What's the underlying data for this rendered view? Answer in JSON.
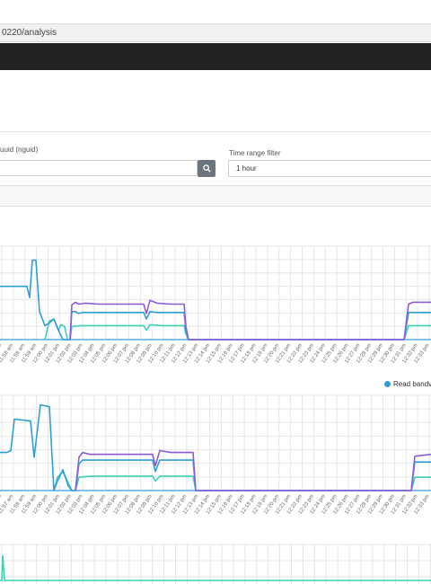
{
  "browser": {
    "url_fragment": "0220/analysis"
  },
  "filters": {
    "uuid_label": "uuid (nguid)",
    "time_range_label": "Time range filter",
    "time_range_value": "1 hour"
  },
  "legend": {
    "read_label": "Read bandv"
  },
  "colors": {
    "purple": "#8e5bd8",
    "blue": "#2e9fd6",
    "teal": "#3fd0b8",
    "grid": "#e6e6e6"
  },
  "chart_data": [
    {
      "type": "line",
      "x": [
        "11:57 am",
        "11:58 am",
        "11:58 am",
        "11:59 am",
        "12:00 pm",
        "12:01 pm",
        "12:02 pm",
        "12:03 pm",
        "12:04 pm",
        "12:05 pm",
        "12:06 pm",
        "12:07 pm",
        "12:08 pm",
        "12:09 pm",
        "12:10 pm",
        "12:11 pm",
        "12:12 pm",
        "12:13 pm",
        "12:14 pm",
        "12:15 pm",
        "12:16 pm",
        "12:17 pm",
        "12:18 pm",
        "12:19 pm",
        "12:20 pm",
        "12:21 pm",
        "12:22 pm",
        "12:23 pm",
        "12:24 pm",
        "12:25 pm",
        "12:26 pm",
        "12:27 pm",
        "12:28 pm",
        "12:29 pm",
        "12:30 pm",
        "12:31 pm",
        "12:32 pm",
        "12:33 pm"
      ],
      "series": [
        {
          "color": "blue",
          "points": [
            [
              0,
              57
            ],
            [
              30,
              57
            ],
            [
              33,
              45
            ],
            [
              36,
              85
            ],
            [
              40,
              85
            ],
            [
              44,
              30
            ],
            [
              50,
              15
            ],
            [
              55,
              18
            ],
            [
              60,
              22
            ],
            [
              65,
              10
            ],
            [
              70,
              0
            ],
            [
              78,
              0
            ],
            [
              80,
              30
            ],
            [
              84,
              30
            ],
            [
              87,
              28
            ],
            [
              92,
              29
            ],
            [
              100,
              29
            ],
            [
              110,
              29
            ],
            [
              120,
              29
            ],
            [
              130,
              29
            ],
            [
              140,
              29
            ],
            [
              150,
              29
            ],
            [
              160,
              29
            ],
            [
              163,
              22
            ],
            [
              167,
              30
            ],
            [
              175,
              29
            ],
            [
              185,
              29
            ],
            [
              195,
              29
            ],
            [
              205,
              29
            ],
            [
              207,
              10
            ],
            [
              210,
              0
            ],
            [
              450,
              0
            ],
            [
              455,
              29
            ],
            [
              480,
              29
            ]
          ]
        },
        {
          "color": "purple",
          "points": [
            [
              78,
              0
            ],
            [
              80,
              37
            ],
            [
              84,
              40
            ],
            [
              88,
              38
            ],
            [
              95,
              39
            ],
            [
              110,
              38
            ],
            [
              130,
              38
            ],
            [
              150,
              38
            ],
            [
              160,
              38
            ],
            [
              163,
              28
            ],
            [
              167,
              42
            ],
            [
              175,
              39
            ],
            [
              190,
              38
            ],
            [
              205,
              38
            ],
            [
              207,
              14
            ],
            [
              210,
              0
            ],
            [
              450,
              0
            ],
            [
              455,
              38
            ],
            [
              460,
              40
            ],
            [
              480,
              40
            ]
          ]
        },
        {
          "color": "teal",
          "points": [
            [
              50,
              0
            ],
            [
              55,
              20
            ],
            [
              60,
              22
            ],
            [
              65,
              10
            ],
            [
              68,
              16
            ],
            [
              72,
              14
            ],
            [
              75,
              0
            ],
            [
              78,
              0
            ],
            [
              80,
              14
            ],
            [
              90,
              15
            ],
            [
              110,
              15
            ],
            [
              130,
              15
            ],
            [
              150,
              15
            ],
            [
              160,
              15
            ],
            [
              163,
              10
            ],
            [
              167,
              16
            ],
            [
              180,
              15
            ],
            [
              205,
              15
            ],
            [
              207,
              6
            ],
            [
              210,
              0
            ],
            [
              450,
              0
            ],
            [
              455,
              15
            ],
            [
              480,
              15
            ]
          ]
        }
      ]
    },
    {
      "type": "line",
      "x": [
        "11:56 am",
        "11:57 am",
        "11:58 am",
        "11:59 am",
        "12:00 pm",
        "12:01 pm",
        "12:02 pm",
        "12:03 pm",
        "12:04 pm",
        "12:05 pm",
        "12:06 pm",
        "12:07 pm",
        "12:08 pm",
        "12:09 pm",
        "12:10 pm",
        "12:11 pm",
        "12:12 pm",
        "12:13 pm",
        "12:14 pm",
        "12:15 pm",
        "12:16 pm",
        "12:17 pm",
        "12:18 pm",
        "12:19 pm",
        "12:20 pm",
        "12:21 pm",
        "12:22 pm",
        "12:23 pm",
        "12:24 pm",
        "12:25 pm",
        "12:26 pm",
        "12:27 pm",
        "12:28 pm",
        "12:29 pm",
        "12:30 pm",
        "12:31 pm",
        "12:32 pm",
        "12:33 pm"
      ],
      "series": [
        {
          "color": "blue",
          "points": [
            [
              0,
              40
            ],
            [
              8,
              40
            ],
            [
              12,
              42
            ],
            [
              16,
              75
            ],
            [
              34,
              73
            ],
            [
              38,
              35
            ],
            [
              45,
              90
            ],
            [
              55,
              88
            ],
            [
              60,
              0
            ],
            [
              64,
              10
            ],
            [
              70,
              22
            ],
            [
              76,
              5
            ],
            [
              80,
              0
            ],
            [
              84,
              0
            ],
            [
              88,
              28
            ],
            [
              92,
              32
            ],
            [
              100,
              32
            ],
            [
              120,
              32
            ],
            [
              140,
              32
            ],
            [
              160,
              32
            ],
            [
              170,
              32
            ],
            [
              173,
              20
            ],
            [
              178,
              32
            ],
            [
              190,
              32
            ],
            [
              215,
              32
            ],
            [
              218,
              0
            ],
            [
              458,
              0
            ],
            [
              462,
              30
            ],
            [
              480,
              30
            ]
          ]
        },
        {
          "color": "purple",
          "points": [
            [
              84,
              0
            ],
            [
              88,
              35
            ],
            [
              92,
              40
            ],
            [
              100,
              38
            ],
            [
              120,
              38
            ],
            [
              140,
              38
            ],
            [
              160,
              38
            ],
            [
              170,
              38
            ],
            [
              173,
              26
            ],
            [
              178,
              42
            ],
            [
              190,
              40
            ],
            [
              215,
              40
            ],
            [
              218,
              0
            ],
            [
              458,
              0
            ],
            [
              462,
              36
            ],
            [
              480,
              38
            ]
          ]
        },
        {
          "color": "teal",
          "points": [
            [
              60,
              0
            ],
            [
              64,
              14
            ],
            [
              70,
              20
            ],
            [
              76,
              8
            ],
            [
              80,
              0
            ],
            [
              84,
              0
            ],
            [
              88,
              14
            ],
            [
              100,
              15
            ],
            [
              130,
              15
            ],
            [
              160,
              15
            ],
            [
              170,
              15
            ],
            [
              173,
              10
            ],
            [
              178,
              15
            ],
            [
              200,
              15
            ],
            [
              215,
              15
            ],
            [
              218,
              0
            ],
            [
              458,
              0
            ],
            [
              462,
              14
            ],
            [
              480,
              14
            ]
          ]
        }
      ]
    }
  ]
}
